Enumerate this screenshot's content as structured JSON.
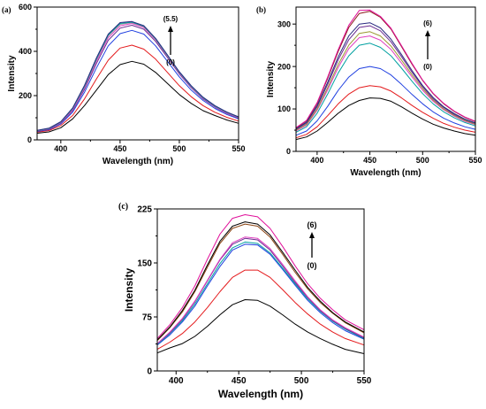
{
  "chart_data": [
    {
      "type": "line",
      "panel": "(a)",
      "xlabel": "Wavelength (nm)",
      "ylabel": "Intensity",
      "xlim": [
        380,
        550
      ],
      "ylim": [
        0,
        600
      ],
      "xticks": [
        400,
        450,
        500,
        550
      ],
      "yticks": [
        0,
        200,
        400,
        600
      ],
      "annotation_top": "(5.5)",
      "annotation_bottom": "(0)",
      "x": [
        380,
        390,
        400,
        410,
        420,
        430,
        440,
        450,
        460,
        470,
        480,
        490,
        500,
        510,
        520,
        530,
        540,
        550
      ],
      "series": [
        {
          "color": "#000000",
          "values": [
            30,
            36,
            55,
            95,
            155,
            225,
            295,
            340,
            355,
            342,
            305,
            255,
            205,
            165,
            132,
            110,
            90,
            75
          ]
        },
        {
          "color": "#e41a1c",
          "values": [
            35,
            42,
            65,
            110,
            185,
            275,
            360,
            415,
            428,
            410,
            365,
            305,
            245,
            195,
            155,
            125,
            102,
            85
          ]
        },
        {
          "color": "#1f3fe0",
          "values": [
            38,
            46,
            72,
            125,
            215,
            325,
            425,
            480,
            495,
            478,
            425,
            355,
            285,
            225,
            178,
            142,
            115,
            95
          ]
        },
        {
          "color": "#6b2c91",
          "values": [
            40,
            48,
            76,
            132,
            228,
            345,
            450,
            505,
            518,
            500,
            445,
            372,
            298,
            236,
            185,
            148,
            120,
            98
          ]
        },
        {
          "color": "#e040c0",
          "values": [
            41,
            50,
            78,
            136,
            235,
            355,
            462,
            515,
            526,
            508,
            452,
            378,
            302,
            240,
            188,
            150,
            122,
            100
          ]
        },
        {
          "color": "#9a9a9a",
          "values": [
            42,
            51,
            80,
            140,
            240,
            362,
            470,
            522,
            530,
            512,
            455,
            380,
            305,
            242,
            190,
            152,
            124,
            102
          ]
        },
        {
          "color": "#00a0a0",
          "values": [
            42,
            52,
            81,
            142,
            243,
            366,
            474,
            526,
            532,
            514,
            457,
            382,
            306,
            243,
            191,
            153,
            125,
            103
          ]
        },
        {
          "color": "#2a2a80",
          "values": [
            43,
            53,
            82,
            144,
            246,
            370,
            478,
            530,
            535,
            516,
            459,
            384,
            308,
            245,
            193,
            155,
            126,
            104
          ]
        }
      ]
    },
    {
      "type": "line",
      "panel": "(b)",
      "xlabel": "Wavelength (nm)",
      "ylabel": "Intensity",
      "xlim": [
        380,
        550
      ],
      "ylim": [
        0,
        340
      ],
      "xticks": [
        400,
        450,
        500,
        550
      ],
      "yticks": [
        0,
        100,
        200,
        300
      ],
      "annotation_top": "(6)",
      "annotation_bottom": "(0)",
      "x": [
        380,
        390,
        400,
        410,
        420,
        430,
        440,
        450,
        460,
        470,
        480,
        490,
        500,
        510,
        520,
        530,
        540,
        550
      ],
      "series": [
        {
          "color": "#000000",
          "values": [
            28,
            34,
            48,
            68,
            90,
            108,
            120,
            126,
            125,
            118,
            105,
            90,
            76,
            64,
            55,
            48,
            42,
            38
          ]
        },
        {
          "color": "#e41a1c",
          "values": [
            32,
            40,
            58,
            84,
            112,
            135,
            150,
            155,
            152,
            142,
            126,
            108,
            92,
            78,
            66,
            57,
            50,
            45
          ]
        },
        {
          "color": "#1f3fe0",
          "values": [
            38,
            48,
            72,
            106,
            144,
            175,
            195,
            200,
            195,
            180,
            158,
            134,
            112,
            93,
            78,
            67,
            58,
            52
          ]
        },
        {
          "color": "#00a0a0",
          "values": [
            45,
            58,
            90,
            135,
            185,
            225,
            250,
            255,
            245,
            225,
            196,
            165,
            136,
            112,
            93,
            79,
            68,
            60
          ]
        },
        {
          "color": "#e040c0",
          "values": [
            48,
            62,
            97,
            145,
            198,
            242,
            268,
            272,
            262,
            240,
            208,
            175,
            144,
            118,
            98,
            83,
            71,
            63
          ]
        },
        {
          "color": "#9a9a30",
          "values": [
            50,
            64,
            100,
            150,
            205,
            250,
            278,
            282,
            272,
            248,
            215,
            180,
            148,
            121,
            100,
            85,
            73,
            64
          ]
        },
        {
          "color": "#6b2c91",
          "values": [
            52,
            67,
            105,
            158,
            216,
            263,
            292,
            296,
            284,
            258,
            223,
            186,
            152,
            124,
            103,
            87,
            75,
            66
          ]
        },
        {
          "color": "#2a2a80",
          "values": [
            53,
            69,
            108,
            163,
            223,
            272,
            300,
            303,
            291,
            264,
            228,
            190,
            155,
            127,
            105,
            89,
            76,
            67
          ]
        },
        {
          "color": "#8b1a1a",
          "values": [
            55,
            72,
            113,
            172,
            236,
            292,
            325,
            330,
            316,
            288,
            247,
            205,
            167,
            136,
            112,
            94,
            80,
            70
          ]
        },
        {
          "color": "#e0109a",
          "values": [
            56,
            73,
            115,
            175,
            240,
            297,
            332,
            333,
            318,
            290,
            249,
            207,
            168,
            137,
            113,
            95,
            81,
            71
          ]
        }
      ]
    },
    {
      "type": "line",
      "panel": "(c)",
      "xlabel": "Wavelength (nm)",
      "ylabel": "Intensity",
      "xlim": [
        385,
        550
      ],
      "ylim": [
        0,
        225
      ],
      "xticks": [
        400,
        450,
        500,
        550
      ],
      "yticks": [
        0,
        75,
        150,
        225
      ],
      "annotation_top": "(6)",
      "annotation_bottom": "(0)",
      "x": [
        385,
        395,
        405,
        415,
        425,
        435,
        445,
        455,
        465,
        475,
        485,
        495,
        505,
        515,
        525,
        535,
        550
      ],
      "series": [
        {
          "color": "#000000",
          "values": [
            25,
            32,
            38,
            48,
            62,
            78,
            92,
            99,
            98,
            90,
            78,
            65,
            54,
            45,
            37,
            30,
            24
          ]
        },
        {
          "color": "#e41a1c",
          "values": [
            30,
            40,
            52,
            68,
            88,
            110,
            130,
            140,
            140,
            130,
            113,
            95,
            79,
            65,
            54,
            45,
            36
          ]
        },
        {
          "color": "#1f3fe0",
          "values": [
            36,
            50,
            68,
            90,
            118,
            145,
            168,
            176,
            175,
            162,
            141,
            119,
            98,
            81,
            67,
            56,
            44
          ]
        },
        {
          "color": "#00a0a0",
          "values": [
            37,
            52,
            70,
            93,
            121,
            149,
            171,
            179,
            177,
            164,
            143,
            121,
            100,
            83,
            69,
            58,
            45
          ]
        },
        {
          "color": "#6b2c91",
          "values": [
            38,
            53,
            72,
            96,
            125,
            154,
            176,
            184,
            182,
            168,
            146,
            123,
            102,
            84,
            70,
            59,
            46
          ]
        },
        {
          "color": "#e040c0",
          "values": [
            38,
            54,
            73,
            97,
            126,
            155,
            178,
            186,
            184,
            170,
            148,
            125,
            103,
            85,
            71,
            60,
            47
          ]
        },
        {
          "color": "#8b4513",
          "values": [
            42,
            60,
            82,
            110,
            144,
            177,
            198,
            204,
            201,
            186,
            162,
            137,
            114,
            95,
            80,
            67,
            53
          ]
        },
        {
          "color": "#000000",
          "values": [
            43,
            61,
            84,
            112,
            147,
            180,
            201,
            207,
            204,
            189,
            165,
            140,
            116,
            97,
            81,
            68,
            54
          ]
        },
        {
          "color": "#e0109a",
          "values": [
            45,
            64,
            88,
            118,
            155,
            190,
            212,
            217,
            214,
            198,
            173,
            146,
            121,
            101,
            85,
            71,
            57
          ]
        }
      ]
    }
  ]
}
